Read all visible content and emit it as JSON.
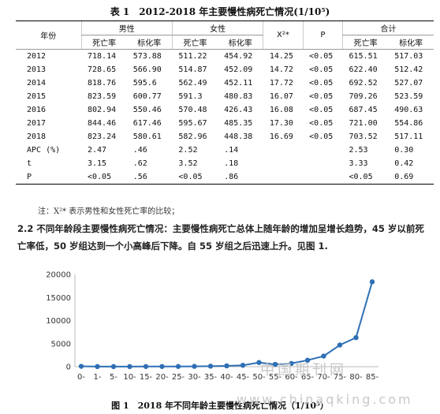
{
  "table": {
    "caption": "表 1　2012-2018 年主要慢性病死亡情况(1/10⁵)",
    "header": {
      "year": "年份",
      "male": "男性",
      "female": "女性",
      "x2": "X²*",
      "p": "P",
      "total": "合计",
      "death_rate": "死亡率",
      "std_rate": "标化率"
    },
    "rows": [
      {
        "year": "2012",
        "m_dr": "718.14",
        "m_sr": "573.88",
        "f_dr": "511.22",
        "f_sr": "454.92",
        "x2": "14.25",
        "p": "<0.05",
        "t_dr": "615.51",
        "t_sr": "517.03"
      },
      {
        "year": "2013",
        "m_dr": "728.65",
        "m_sr": "566.90",
        "f_dr": "514.87",
        "f_sr": "452.09",
        "x2": "14.72",
        "p": "<0.05",
        "t_dr": "622.40",
        "t_sr": "512.42"
      },
      {
        "year": "2014",
        "m_dr": "818.76",
        "m_sr": "595.6",
        "f_dr": "562.49",
        "f_sr": "452.11",
        "x2": "17.72",
        "p": "<0.05",
        "t_dr": "692.52",
        "t_sr": "527.07"
      },
      {
        "year": "2015",
        "m_dr": "823.59",
        "m_sr": "600.77",
        "f_dr": "591.3",
        "f_sr": "480.83",
        "x2": "16.07",
        "p": "<0.05",
        "t_dr": "709.26",
        "t_sr": "523.59"
      },
      {
        "year": "2016",
        "m_dr": "802.94",
        "m_sr": "550.46",
        "f_dr": "570.48",
        "f_sr": "426.43",
        "x2": "16.08",
        "p": "<0.05",
        "t_dr": "687.45",
        "t_sr": "490.63"
      },
      {
        "year": "2017",
        "m_dr": "844.46",
        "m_sr": "617.46",
        "f_dr": "595.67",
        "f_sr": "485.35",
        "x2": "17.30",
        "p": "<0.05",
        "t_dr": "721.00",
        "t_sr": "554.86"
      },
      {
        "year": "2018",
        "m_dr": "823.24",
        "m_sr": "580.61",
        "f_dr": "582.96",
        "f_sr": "448.38",
        "x2": "16.69",
        "p": "<0.05",
        "t_dr": "703.52",
        "t_sr": "517.11"
      },
      {
        "year": "APC (%)",
        "m_dr": "2.47",
        "m_sr": ".46",
        "f_dr": "2.52",
        "f_sr": ".14",
        "x2": "",
        "p": "",
        "t_dr": "2.53",
        "t_sr": "0.30"
      },
      {
        "year": "t",
        "m_dr": "3.15",
        "m_sr": ".62",
        "f_dr": "3.52",
        "f_sr": ".18",
        "x2": "",
        "p": "",
        "t_dr": "3.33",
        "t_sr": "0.42"
      },
      {
        "year": "P",
        "m_dr": "<0.05",
        "m_sr": ".56",
        "f_dr": "<0.05",
        "f_sr": ".86",
        "x2": "",
        "p": "",
        "t_dr": "<0.05",
        "t_sr": "0.69"
      }
    ],
    "note": "注：X²* 表示男性和女性死亡率的比较；"
  },
  "paragraph": "2.2 不同年龄段主要慢性病死亡情况：主要慢性病死亡总体上随年龄的增加呈增长趋势，45 岁以前死亡率低，50 岁组达到一个小高峰后下降。自 55 岁组之后迅速上升。见图 1.",
  "chart_data": {
    "type": "line",
    "categories": [
      "0-",
      "1-",
      "5-",
      "10-",
      "15-",
      "20-",
      "25-",
      "30-",
      "35-",
      "40-",
      "45-",
      "50-",
      "55-",
      "60-",
      "65-",
      "70-",
      "75-",
      "80-",
      "85-"
    ],
    "values": [
      80,
      30,
      20,
      25,
      35,
      40,
      50,
      70,
      110,
      180,
      300,
      900,
      500,
      700,
      1400,
      2300,
      4700,
      6300,
      18400
    ],
    "yticks": [
      "0",
      "5000",
      "10000",
      "15000",
      "20000"
    ],
    "ylim": [
      0,
      20000
    ],
    "grid": false,
    "color": "#2e6fb5"
  },
  "figure_caption": "图 1　2018 年不同年龄主要慢性病死亡情况（1/10⁵）",
  "watermark": {
    "line1": "中国期刊网",
    "line2": "www.chinaqking.com"
  }
}
